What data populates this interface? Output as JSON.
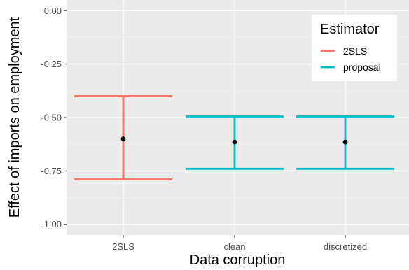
{
  "chart_data": {
    "type": "errorbar",
    "categories": [
      "2SLS",
      "clean",
      "discretized"
    ],
    "xlabel": "Data corruption",
    "ylabel": "Effect of imports on employment",
    "ylim": [
      -1.05,
      0.05
    ],
    "yticks": [
      0.0,
      -0.25,
      -0.5,
      -0.75,
      -1.0
    ],
    "ytick_labels": [
      "0.00",
      "-0.25",
      "-0.50",
      "-0.75",
      "-1.00"
    ],
    "grid": true,
    "legend": {
      "title": "Estimator",
      "placement": "top-right",
      "entries": [
        {
          "label": "2SLS",
          "color": "#F8766D"
        },
        {
          "label": "proposal",
          "color": "#00BFC4"
        }
      ]
    },
    "points": [
      {
        "category": "2SLS",
        "estimator": "2SLS",
        "estimate": -0.6,
        "lower": -0.79,
        "upper": -0.4
      },
      {
        "category": "clean",
        "estimator": "proposal",
        "estimate": -0.615,
        "lower": -0.74,
        "upper": -0.495
      },
      {
        "category": "discretized",
        "estimator": "proposal",
        "estimate": -0.615,
        "lower": -0.74,
        "upper": -0.495
      }
    ],
    "colors": {
      "2SLS": "#F8766D",
      "proposal": "#00BFC4"
    }
  }
}
